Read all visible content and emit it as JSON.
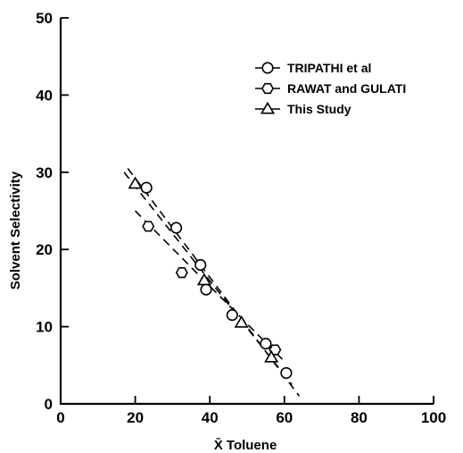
{
  "chart_data": {
    "type": "scatter",
    "xlabel": "X̄ Toluene",
    "ylabel": "Solvent Selectivity",
    "xlim": [
      0,
      100
    ],
    "ylim": [
      0,
      50
    ],
    "xticks": [
      0,
      20,
      40,
      60,
      80,
      100
    ],
    "yticks": [
      0,
      10,
      20,
      30,
      40,
      50
    ],
    "legend_position": "top-right",
    "series": [
      {
        "name": "TRIPATHI et al",
        "marker": "circle",
        "points": [
          [
            23,
            28
          ],
          [
            31,
            22.8
          ],
          [
            37.5,
            18
          ],
          [
            39,
            14.8
          ],
          [
            46,
            11.5
          ],
          [
            55,
            7.8
          ],
          [
            60.5,
            4
          ]
        ],
        "fit_line": [
          [
            18,
            30.5
          ],
          [
            64,
            1
          ]
        ]
      },
      {
        "name": "RAWAT and GULATI",
        "marker": "hexagon",
        "points": [
          [
            23.5,
            23
          ],
          [
            32.5,
            17
          ],
          [
            57.5,
            7
          ]
        ],
        "fit_line": [
          [
            20,
            25
          ],
          [
            60,
            5.5
          ]
        ]
      },
      {
        "name": "This Study",
        "marker": "triangle",
        "points": [
          [
            20,
            28.5
          ],
          [
            38.5,
            16
          ],
          [
            48.5,
            10.5
          ],
          [
            56.5,
            6
          ]
        ],
        "fit_line": [
          [
            17,
            30
          ],
          [
            62,
            2.5
          ]
        ]
      }
    ]
  }
}
